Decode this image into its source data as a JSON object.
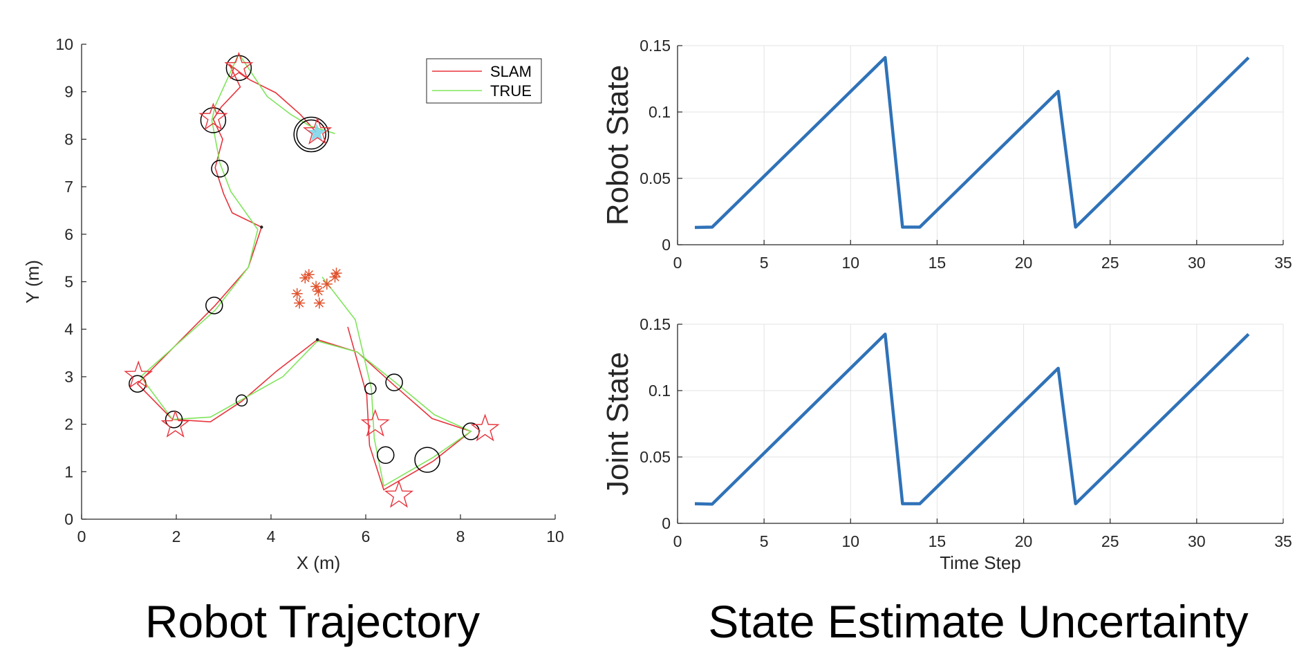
{
  "captions": {
    "left": "Robot Trajectory",
    "right": "State Estimate Uncertainty"
  },
  "colors": {
    "slam": "#e8333c",
    "true": "#7fe55a",
    "circle": "#000000",
    "star": "#e8333c",
    "asterisk": "#e0522d",
    "highlight": "#7fd6e8",
    "uncertainty": "#2f72b8",
    "grid": "#e3e3e3",
    "axis": "#262626"
  },
  "chart_data": [
    {
      "type": "line",
      "xlabel": "X (m)",
      "ylabel": "Y (m)",
      "xlim": [
        0,
        10
      ],
      "ylim": [
        0,
        10
      ],
      "xticks": [
        0,
        2,
        4,
        6,
        8,
        10
      ],
      "yticks": [
        0,
        1,
        2,
        3,
        4,
        5,
        6,
        7,
        8,
        9,
        10
      ],
      "grid": false,
      "legend": {
        "placement": "top-right",
        "entries": [
          "SLAM",
          "TRUE"
        ]
      },
      "series": [
        {
          "name": "SLAM",
          "x": [
            4.95,
            4.82,
            4.62,
            4.1,
            3.55,
            3.12,
            3.35,
            2.95,
            2.78,
            2.98,
            2.82,
            3.0,
            3.18,
            3.8,
            3.52,
            2.82,
            1.18,
            1.92,
            2.72,
            3.38,
            4.12,
            4.98,
            5.82,
            6.6,
            7.4,
            8.22,
            7.42,
            6.38,
            6.08,
            6.02,
            5.62
          ],
          "y": [
            8.15,
            8.3,
            8.52,
            8.98,
            9.25,
            9.58,
            9.1,
            8.68,
            8.42,
            8.0,
            7.4,
            6.85,
            6.45,
            6.15,
            5.3,
            4.5,
            2.85,
            2.1,
            2.05,
            2.48,
            3.12,
            3.78,
            3.52,
            2.82,
            2.12,
            1.85,
            1.22,
            0.62,
            1.55,
            2.62,
            4.05
          ]
        },
        {
          "name": "TRUE",
          "x": [
            5.35,
            4.82,
            4.42,
            3.92,
            3.32,
            2.82,
            2.75,
            2.92,
            3.15,
            3.72,
            3.52,
            2.82,
            1.25,
            1.92,
            2.72,
            3.35,
            4.25,
            4.98,
            5.82,
            6.6,
            7.45,
            8.22,
            7.42,
            6.38,
            6.18,
            6.12,
            5.78,
            5.08
          ],
          "y": [
            8.12,
            8.28,
            8.52,
            8.9,
            9.8,
            8.7,
            8.4,
            7.5,
            6.9,
            6.1,
            5.3,
            4.4,
            3.0,
            2.1,
            2.15,
            2.5,
            3.0,
            3.75,
            3.52,
            2.9,
            2.2,
            1.85,
            1.3,
            0.7,
            1.7,
            2.75,
            4.2,
            5.1
          ]
        }
      ],
      "circles": [
        {
          "x": 3.32,
          "y": 9.5,
          "size": "large"
        },
        {
          "x": 2.78,
          "y": 8.4,
          "size": "large"
        },
        {
          "x": 2.92,
          "y": 7.38,
          "size": "small"
        },
        {
          "x": 4.85,
          "y": 8.1,
          "size": "double"
        },
        {
          "x": 2.8,
          "y": 4.5,
          "size": "small"
        },
        {
          "x": 1.18,
          "y": 2.85,
          "size": "small"
        },
        {
          "x": 1.95,
          "y": 2.1,
          "size": "small"
        },
        {
          "x": 3.38,
          "y": 2.5,
          "size": "tiny"
        },
        {
          "x": 6.1,
          "y": 2.75,
          "size": "tiny"
        },
        {
          "x": 6.6,
          "y": 2.88,
          "size": "small"
        },
        {
          "x": 6.42,
          "y": 1.35,
          "size": "small"
        },
        {
          "x": 7.3,
          "y": 1.25,
          "size": "large"
        },
        {
          "x": 8.22,
          "y": 1.85,
          "size": "small"
        }
      ],
      "stars": [
        {
          "x": 3.32,
          "y": 9.52
        },
        {
          "x": 2.78,
          "y": 8.45
        },
        {
          "x": 4.98,
          "y": 8.15
        },
        {
          "x": 1.2,
          "y": 3.02
        },
        {
          "x": 1.98,
          "y": 1.98
        },
        {
          "x": 6.2,
          "y": 2.0
        },
        {
          "x": 6.7,
          "y": 0.5
        },
        {
          "x": 8.52,
          "y": 1.9
        }
      ],
      "asterisks": [
        {
          "x": 4.72,
          "y": 5.08
        },
        {
          "x": 4.8,
          "y": 5.15
        },
        {
          "x": 4.95,
          "y": 4.9
        },
        {
          "x": 5.0,
          "y": 4.8
        },
        {
          "x": 5.18,
          "y": 4.95
        },
        {
          "x": 5.35,
          "y": 5.1
        },
        {
          "x": 5.38,
          "y": 5.18
        },
        {
          "x": 4.55,
          "y": 4.75
        },
        {
          "x": 4.6,
          "y": 4.55
        },
        {
          "x": 5.02,
          "y": 4.55
        }
      ]
    },
    {
      "type": "line",
      "xlabel": "",
      "ylabel": "Robot State",
      "xlim": [
        0,
        35
      ],
      "ylim": [
        0,
        0.15
      ],
      "xticks": [
        0,
        5,
        10,
        15,
        20,
        25,
        30,
        35
      ],
      "yticks": [
        "0",
        "0.05",
        "0.1",
        "0.15"
      ],
      "grid": true,
      "x": [
        1,
        2,
        12,
        13,
        14,
        22,
        23,
        33
      ],
      "y": [
        0.013,
        0.0133,
        0.141,
        0.0133,
        0.0133,
        0.1155,
        0.0133,
        0.141
      ]
    },
    {
      "type": "line",
      "xlabel": "Time Step",
      "ylabel": "Joint State",
      "xlim": [
        0,
        35
      ],
      "ylim": [
        0,
        0.15
      ],
      "xticks": [
        0,
        5,
        10,
        15,
        20,
        25,
        30,
        35
      ],
      "yticks": [
        "0",
        "0.05",
        "0.1",
        "0.15"
      ],
      "grid": true,
      "x": [
        1,
        2,
        12,
        13,
        14,
        22,
        23,
        33
      ],
      "y": [
        0.0148,
        0.0145,
        0.1425,
        0.0148,
        0.0148,
        0.1168,
        0.0148,
        0.1425
      ]
    }
  ]
}
